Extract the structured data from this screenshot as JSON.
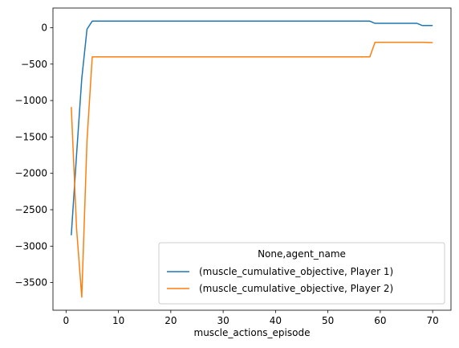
{
  "chart_data": {
    "type": "line",
    "title": "",
    "xlabel": "muscle_actions_episode",
    "ylabel": "",
    "xlim": [
      -2.5,
      73.5
    ],
    "ylim": [
      -3880,
      270
    ],
    "xticks": [
      0,
      10,
      20,
      30,
      40,
      50,
      60,
      70
    ],
    "yticks": [
      0,
      -500,
      -1000,
      -1500,
      -2000,
      -2500,
      -3000,
      -3500
    ],
    "grid": false,
    "legend": {
      "title": "None,agent_name",
      "position": "lower-right"
    },
    "series": [
      {
        "name": "(muscle_cumulative_objective, Player 1)",
        "color": "#1f77b4",
        "points": [
          [
            1,
            -2850
          ],
          [
            2,
            -1750
          ],
          [
            3,
            -700
          ],
          [
            4,
            -20
          ],
          [
            5,
            90
          ],
          [
            58,
            90
          ],
          [
            59,
            60
          ],
          [
            67,
            60
          ],
          [
            68,
            30
          ],
          [
            70,
            30
          ]
        ]
      },
      {
        "name": "(muscle_cumulative_objective, Player 2)",
        "color": "#ff7f0e",
        "points": [
          [
            1,
            -1090
          ],
          [
            2,
            -2750
          ],
          [
            3,
            -3700
          ],
          [
            4,
            -1550
          ],
          [
            5,
            -400
          ],
          [
            58,
            -400
          ],
          [
            59,
            -200
          ],
          [
            68,
            -200
          ],
          [
            70,
            -205
          ]
        ]
      }
    ]
  }
}
